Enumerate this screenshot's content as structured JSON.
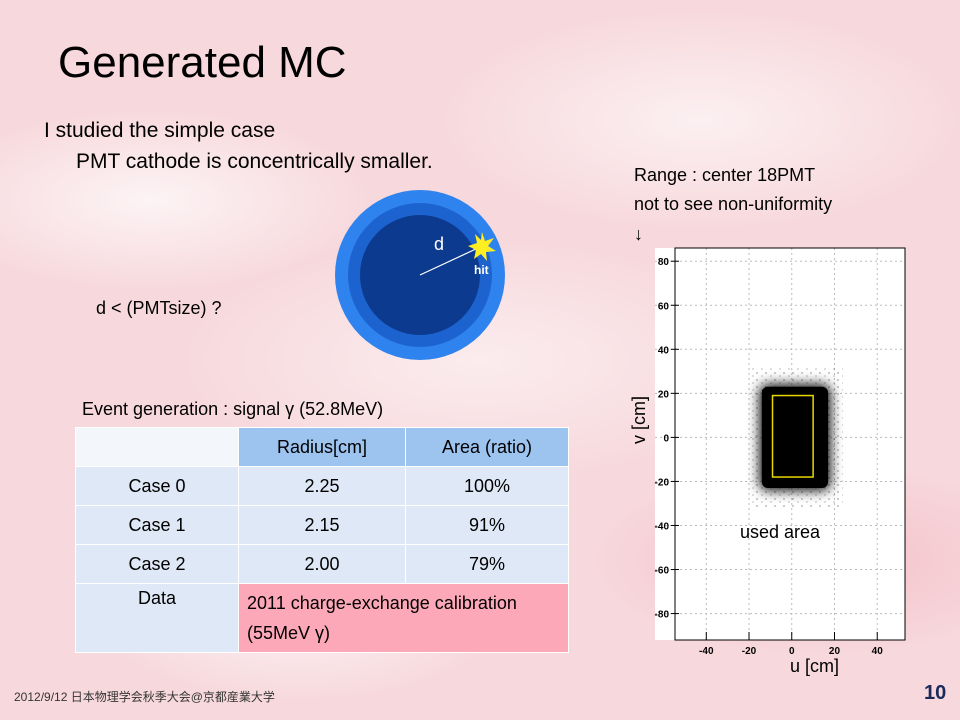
{
  "title": "Generated MC",
  "intro": [
    "I studied the simple case",
    "PMT cathode is concentrically smaller."
  ],
  "diagram": {
    "distance": "d",
    "hit": "hit",
    "question": "d < (PMTsize) ?"
  },
  "range_note": [
    "Range : center 18PMT",
    "not to see non-uniformity",
    "↓"
  ],
  "table": {
    "caption": "Event generation : signal γ (52.8MeV)",
    "header": [
      "Radius[cm]",
      "Area (ratio)"
    ],
    "rows": [
      [
        "Case 0",
        "2.25",
        "100%"
      ],
      [
        "Case 1",
        "2.15",
        "91%"
      ],
      [
        "Case 2",
        "2.00",
        "79%"
      ]
    ],
    "data_row": [
      "Data",
      "2011 charge-exchange calibration (55MeV γ)"
    ]
  },
  "chart_data": {
    "type": "scatter",
    "xlabel": "u [cm]",
    "ylabel": "v [cm]",
    "xlim": [
      -64,
      53
    ],
    "ylim": [
      -92,
      86
    ],
    "xticks": [
      -40,
      -20,
      0,
      20,
      40
    ],
    "yticks": [
      -80,
      -60,
      -40,
      -20,
      0,
      20,
      40,
      60,
      80
    ],
    "grid": true,
    "used_area": {
      "u": [
        -9,
        10
      ],
      "v": [
        -18,
        19
      ],
      "color": "#e8d800"
    },
    "annotation": "used area"
  },
  "footer": "2012/9/12 日本物理学会秋季大会@京都産業大学",
  "page_number": "10"
}
